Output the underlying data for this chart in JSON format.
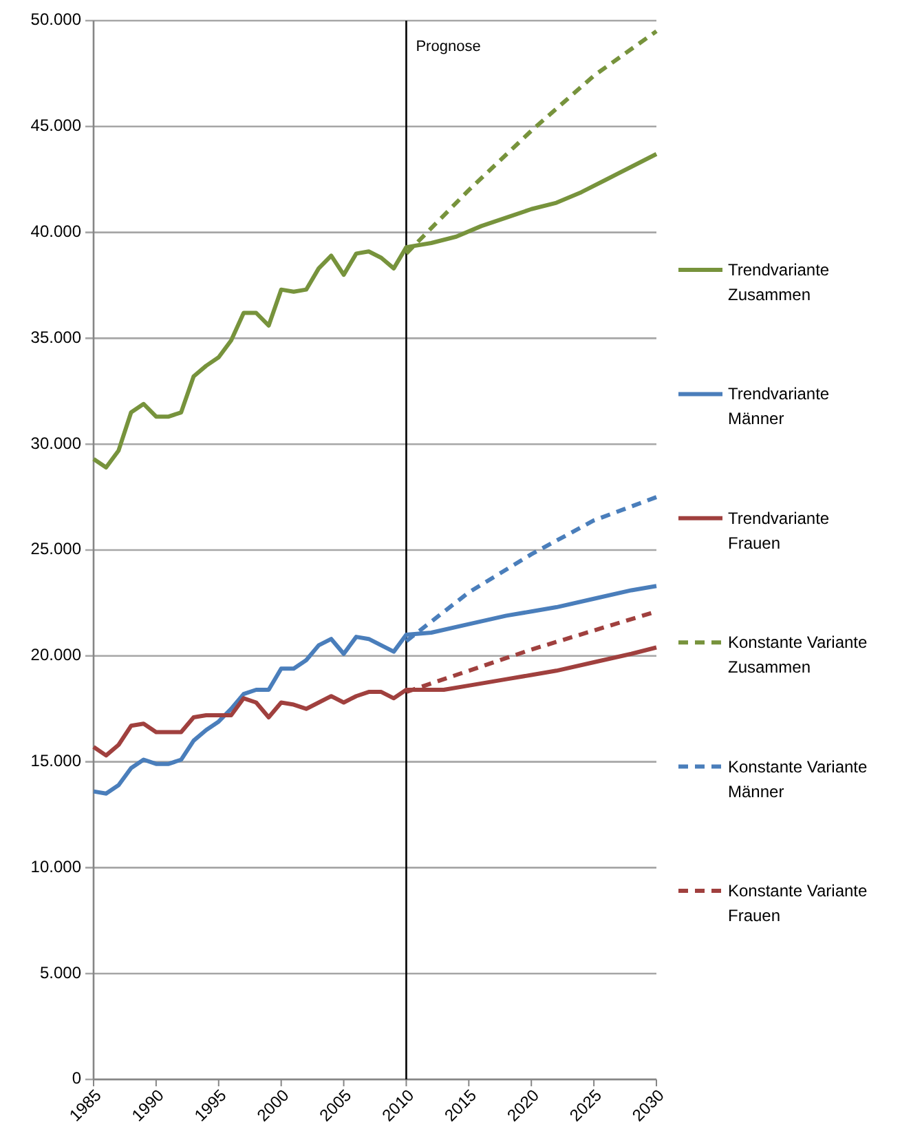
{
  "chart_data": {
    "type": "line",
    "xlim": [
      1985,
      2030
    ],
    "xticks": [
      1985,
      1990,
      1995,
      2000,
      2005,
      2010,
      2015,
      2020,
      2025,
      2030
    ],
    "ylim": [
      0,
      50000
    ],
    "yticks": [
      {
        "value": 0,
        "label": "0"
      },
      {
        "value": 5000,
        "label": "5.000"
      },
      {
        "value": 10000,
        "label": "10.000"
      },
      {
        "value": 15000,
        "label": "15.000"
      },
      {
        "value": 20000,
        "label": "20.000"
      },
      {
        "value": 25000,
        "label": "25.000"
      },
      {
        "value": 30000,
        "label": "30.000"
      },
      {
        "value": 35000,
        "label": "35.000"
      },
      {
        "value": 40000,
        "label": "40.000"
      },
      {
        "value": 45000,
        "label": "45.000"
      },
      {
        "value": 50000,
        "label": "50.000"
      }
    ],
    "grid": "y",
    "legend": "right",
    "ref_lines": [
      {
        "axis": "x",
        "value": 2010,
        "label": "Prognose",
        "color": "#000000"
      }
    ],
    "series": [
      {
        "name": "Trendvariante Zusammen",
        "color": "#77933c",
        "line_style": "solid",
        "x": [
          1985,
          1986,
          1987,
          1988,
          1989,
          1990,
          1991,
          1992,
          1993,
          1994,
          1995,
          1996,
          1997,
          1998,
          1999,
          2000,
          2001,
          2002,
          2003,
          2004,
          2005,
          2006,
          2007,
          2008,
          2009,
          2010,
          2012,
          2014,
          2016,
          2018,
          2020,
          2022,
          2024,
          2026,
          2028,
          2030
        ],
        "values": [
          29300,
          28900,
          29700,
          31500,
          31900,
          31300,
          31300,
          31500,
          33200,
          33700,
          34100,
          34900,
          36200,
          36200,
          35600,
          37300,
          37200,
          37300,
          38300,
          38900,
          38000,
          39000,
          39100,
          38800,
          38300,
          39300,
          39500,
          39800,
          40300,
          40700,
          41100,
          41400,
          41900,
          42500,
          43100,
          43700
        ]
      },
      {
        "name": "Trendvariante Männer",
        "color": "#4a7ebb",
        "line_style": "solid",
        "x": [
          1985,
          1986,
          1987,
          1988,
          1989,
          1990,
          1991,
          1992,
          1993,
          1994,
          1995,
          1996,
          1997,
          1998,
          1999,
          2000,
          2001,
          2002,
          2003,
          2004,
          2005,
          2006,
          2007,
          2008,
          2009,
          2010,
          2012,
          2015,
          2018,
          2020,
          2022,
          2025,
          2028,
          2030
        ],
        "values": [
          13600,
          13500,
          13900,
          14700,
          15100,
          14900,
          14900,
          15100,
          16000,
          16500,
          16900,
          17500,
          18200,
          18400,
          18400,
          19400,
          19400,
          19800,
          20500,
          20800,
          20100,
          20900,
          20800,
          20500,
          20200,
          21000,
          21100,
          21500,
          21900,
          22100,
          22300,
          22700,
          23100,
          23300
        ]
      },
      {
        "name": "Trendvariante Frauen",
        "color": "#a0403e",
        "line_style": "solid",
        "x": [
          1985,
          1986,
          1987,
          1988,
          1989,
          1990,
          1991,
          1992,
          1993,
          1994,
          1995,
          1996,
          1997,
          1998,
          1999,
          2000,
          2001,
          2002,
          2003,
          2004,
          2005,
          2006,
          2007,
          2008,
          2009,
          2010,
          2013,
          2015,
          2018,
          2020,
          2022,
          2025,
          2028,
          2030
        ],
        "values": [
          15700,
          15300,
          15800,
          16700,
          16800,
          16400,
          16400,
          16400,
          17100,
          17200,
          17200,
          17200,
          18000,
          17800,
          17100,
          17800,
          17700,
          17500,
          17800,
          18100,
          17800,
          18100,
          18300,
          18300,
          18000,
          18400,
          18400,
          18600,
          18900,
          19100,
          19300,
          19700,
          20100,
          20400
        ]
      },
      {
        "name": "Konstante Variante Zusammen",
        "color": "#77933c",
        "line_style": "dashed",
        "x": [
          2010,
          2015,
          2020,
          2025,
          2030
        ],
        "values": [
          39000,
          42000,
          44800,
          47400,
          49500
        ]
      },
      {
        "name": "Konstante Variante Männer",
        "color": "#4a7ebb",
        "line_style": "dashed",
        "x": [
          2010,
          2015,
          2020,
          2025,
          2030
        ],
        "values": [
          20700,
          23000,
          24800,
          26400,
          27500
        ]
      },
      {
        "name": "Konstante Variante Frauen",
        "color": "#a0403e",
        "line_style": "dashed",
        "x": [
          2010,
          2015,
          2020,
          2025,
          2030
        ],
        "values": [
          18300,
          19300,
          20300,
          21200,
          22100
        ]
      }
    ]
  }
}
